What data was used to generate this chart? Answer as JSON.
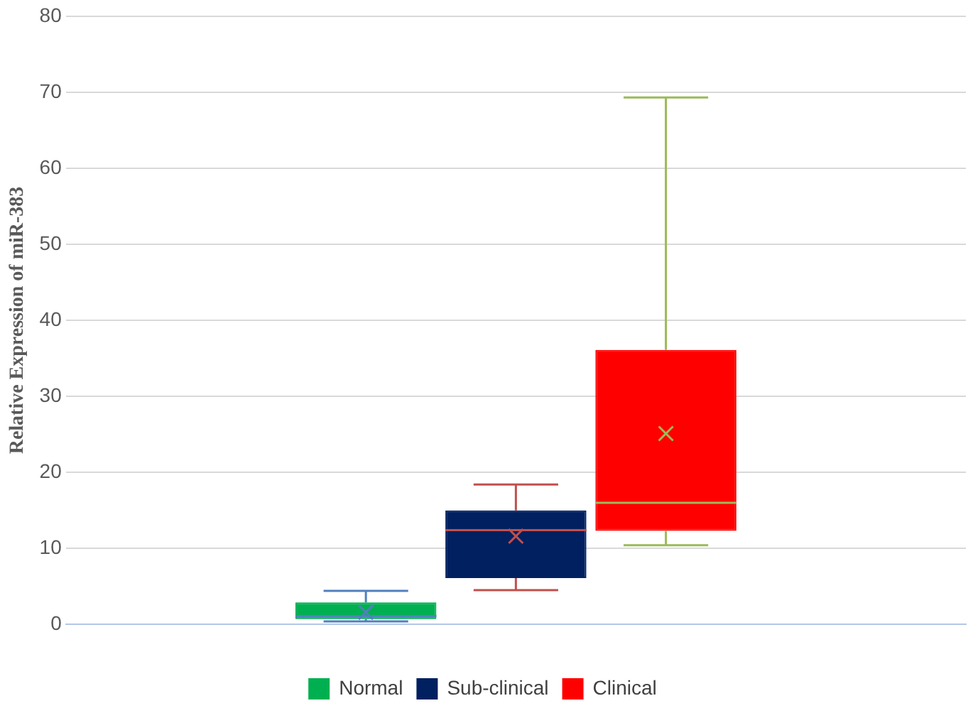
{
  "chart_data": {
    "type": "box",
    "ylabel": "Relative Expression of miR-383",
    "categories": [
      null
    ],
    "ylim": [
      0,
      80
    ],
    "yticks": [
      0,
      10,
      20,
      30,
      40,
      50,
      60,
      70,
      80
    ],
    "grid": "y",
    "legend": "bottom",
    "series": [
      {
        "name": "Normal",
        "color": "#00b050",
        "boxes": [
          {
            "low": 0.4,
            "q1": 0.7,
            "median": 1.1,
            "q3": 2.9,
            "high": 4.4,
            "mean": 1.6
          }
        ]
      },
      {
        "name": "Sub-clinical",
        "color": "#002060",
        "boxes": [
          {
            "low": 4.5,
            "q1": 6.1,
            "median": 12.4,
            "q3": 15.0,
            "high": 18.4,
            "mean": 11.6
          }
        ]
      },
      {
        "name": "Clinical",
        "color": "#ff0000",
        "boxes": [
          {
            "low": 10.4,
            "q1": 12.3,
            "median": 16.0,
            "q3": 36.1,
            "high": 69.3,
            "mean": 25.1
          }
        ]
      }
    ]
  }
}
